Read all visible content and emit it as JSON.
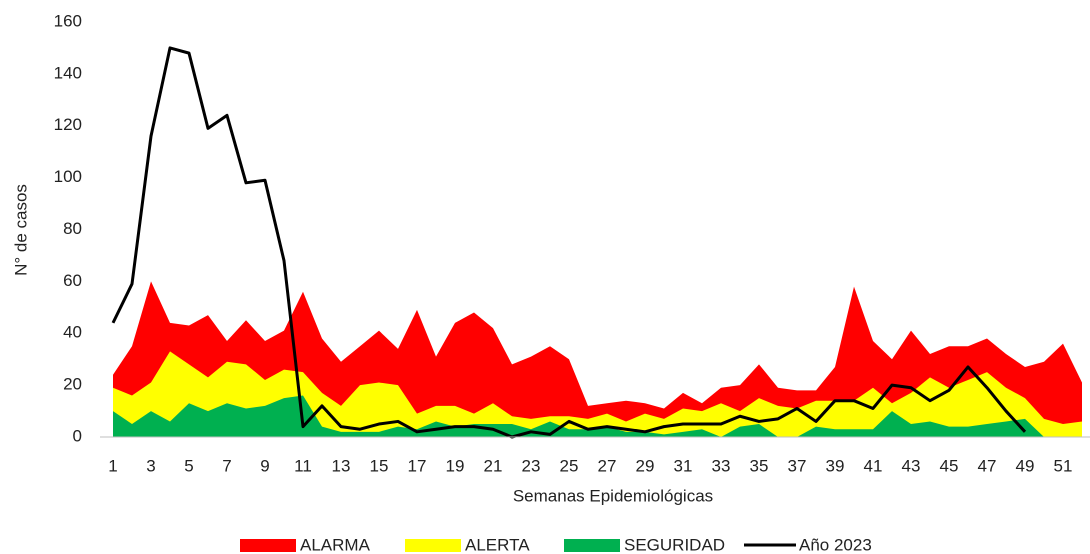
{
  "chart_data": {
    "type": "area",
    "y_label": "N° de casos",
    "x_label": "Semanas Epidemiológicas",
    "categories": [
      "1",
      null,
      "3",
      null,
      "5",
      null,
      "7",
      null,
      "9",
      null,
      "11",
      null,
      "13",
      null,
      "15",
      null,
      "17",
      null,
      "19",
      null,
      "21",
      null,
      "23",
      null,
      "25",
      null,
      "27",
      null,
      "29",
      null,
      "31",
      null,
      "33",
      null,
      "35",
      null,
      "37",
      null,
      "39",
      null,
      "41",
      null,
      "43",
      null,
      "45",
      null,
      "47",
      null,
      "49",
      null,
      "51",
      null
    ],
    "series": [
      {
        "name": "ALARMA",
        "color": "#ff0000",
        "style": "area",
        "values": [
          24,
          35,
          60,
          44,
          43,
          47,
          37,
          45,
          37,
          41,
          56,
          38,
          29,
          35,
          41,
          34,
          49,
          31,
          44,
          48,
          42,
          28,
          31,
          35,
          30,
          12,
          13,
          14,
          13,
          11,
          17,
          13,
          19,
          20,
          28,
          19,
          18,
          18,
          27,
          58,
          37,
          30,
          41,
          32,
          35,
          35,
          38,
          32,
          27,
          29,
          36,
          21
        ]
      },
      {
        "name": "ALERTA",
        "color": "#ffff00",
        "style": "area",
        "values": [
          19,
          16,
          21,
          33,
          28,
          23,
          29,
          28,
          22,
          26,
          25,
          17,
          12,
          20,
          21,
          20,
          9,
          12,
          12,
          9,
          13,
          8,
          7,
          8,
          8,
          7,
          9,
          6,
          9,
          7,
          11,
          10,
          13,
          10,
          15,
          12,
          11,
          14,
          14,
          14,
          19,
          13,
          17,
          23,
          19,
          22,
          25,
          19,
          15,
          7,
          5,
          6
        ]
      },
      {
        "name": "SEGURIDAD",
        "color": "#00b050",
        "style": "area",
        "values": [
          10,
          5,
          10,
          6,
          13,
          10,
          13,
          11,
          12,
          15,
          16,
          4,
          2,
          2,
          2,
          4,
          3,
          6,
          4,
          5,
          5,
          5,
          3,
          6,
          3,
          3,
          4,
          2,
          2,
          1,
          2,
          3,
          0,
          4,
          5,
          0,
          0,
          4,
          3,
          3,
          3,
          10,
          5,
          6,
          4,
          4,
          5,
          6,
          7,
          0,
          0,
          0
        ]
      },
      {
        "name": "Año 2023",
        "color": "#000000",
        "style": "line",
        "values": [
          44,
          59,
          116,
          150,
          148,
          119,
          124,
          98,
          99,
          68,
          4,
          12,
          4,
          3,
          5,
          6,
          2,
          3,
          4,
          4,
          3,
          0,
          2,
          1,
          6,
          3,
          4,
          3,
          2,
          4,
          5,
          5,
          5,
          8,
          6,
          7,
          11,
          6,
          14,
          14,
          11,
          20,
          19,
          14,
          18,
          27,
          19,
          10,
          2,
          null,
          null,
          null
        ]
      }
    ],
    "ylim": [
      0,
      160
    ],
    "yticks": [
      0,
      20,
      40,
      60,
      80,
      100,
      120,
      140,
      160
    ],
    "grid": false
  }
}
